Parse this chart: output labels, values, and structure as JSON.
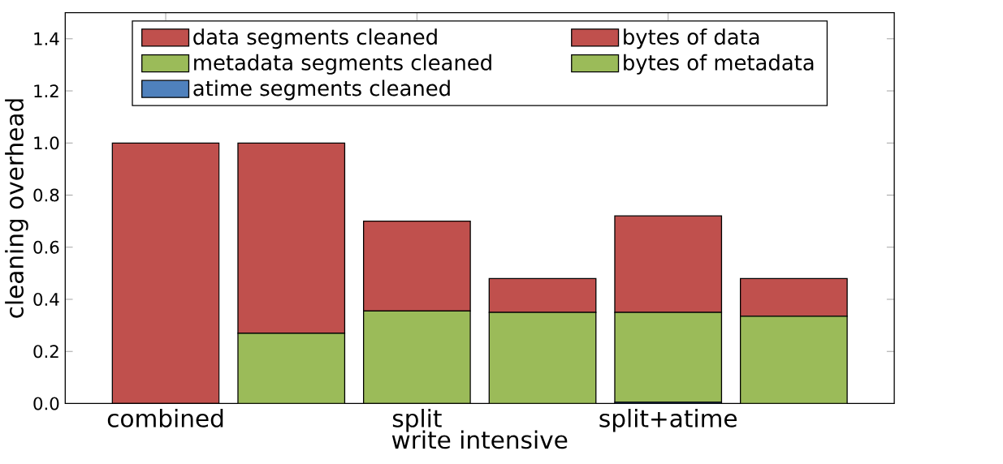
{
  "chart_data": {
    "type": "bar",
    "stacked": true,
    "xlabel": "write intensive",
    "ylabel": "cleaning overhead",
    "categories": [
      "combined",
      null,
      "split",
      null,
      "split+atime",
      null
    ],
    "series": [
      {
        "name": "atime segments cleaned",
        "color": "#4f81bd",
        "values": [
          0,
          null,
          0,
          null,
          0.005,
          null
        ]
      },
      {
        "name": "metadata segments cleaned",
        "color": "#9bbb59",
        "values": [
          0,
          null,
          0.355,
          null,
          0.345,
          null
        ]
      },
      {
        "name": "data segments cleaned",
        "color": "#c0504d",
        "values": [
          1.0,
          null,
          0.345,
          null,
          0.37,
          null
        ]
      },
      {
        "name": "bytes of metadata",
        "color": "#9bbb59",
        "values": [
          null,
          0.27,
          null,
          0.35,
          null,
          0.335
        ]
      },
      {
        "name": "bytes of data",
        "color": "#c0504d",
        "values": [
          null,
          0.73,
          null,
          0.13,
          null,
          0.145
        ]
      }
    ],
    "ylim": [
      0,
      1.5
    ],
    "yticks": [
      {
        "value": 0,
        "label": "0.0"
      },
      0.2,
      0.4,
      0.6,
      0.8,
      {
        "value": 1.0,
        "label": "1.0"
      },
      1.2,
      1.4
    ],
    "legend": "top"
  }
}
